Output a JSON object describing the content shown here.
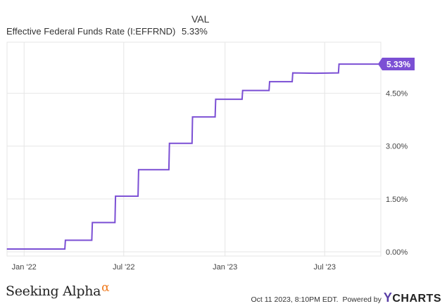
{
  "legend": {
    "header": "VAL",
    "series_name": "Effective Federal Funds Rate (I:EFFRND)",
    "series_value": "5.33%"
  },
  "footer": {
    "brand": "Seeking Alpha",
    "brand_symbol": "α",
    "timestamp": "Oct 11 2023, 8:10PM EDT.",
    "powered_by": "Powered by",
    "provider_prefix": "Y",
    "provider_rest": "CHARTS"
  },
  "colors": {
    "series": "#7b4fd4",
    "grid": "#e6e6e6",
    "badge_text": "#ffffff",
    "brand_alpha": "#f07c21"
  },
  "chart_data": {
    "type": "line",
    "title": "",
    "xlabel": "",
    "ylabel": "",
    "x_ticks": [
      "Jan '22",
      "Jul '22",
      "Jan '23",
      "Jul '23"
    ],
    "y_ticks": [
      "0.00%",
      "1.50%",
      "3.00%",
      "4.50%"
    ],
    "xlim": [
      "2021-12-01",
      "2023-10-11"
    ],
    "ylim": [
      -0.12,
      5.95
    ],
    "grid": true,
    "end_label": "5.33%",
    "series": [
      {
        "name": "Effective Federal Funds Rate (I:EFFRND)",
        "x": [
          "2021-12-01",
          "2022-03-16",
          "2022-03-17",
          "2022-05-04",
          "2022-05-05",
          "2022-06-15",
          "2022-06-16",
          "2022-07-27",
          "2022-07-28",
          "2022-09-21",
          "2022-09-22",
          "2022-11-02",
          "2022-11-03",
          "2022-12-14",
          "2022-12-15",
          "2023-02-01",
          "2023-02-02",
          "2023-03-22",
          "2023-03-23",
          "2023-05-03",
          "2023-05-04",
          "2023-06-14",
          "2023-07-26",
          "2023-07-27",
          "2023-10-11"
        ],
        "y": [
          0.08,
          0.08,
          0.33,
          0.33,
          0.83,
          0.83,
          1.58,
          1.58,
          2.33,
          2.33,
          3.08,
          3.08,
          3.83,
          3.83,
          4.33,
          4.33,
          4.58,
          4.58,
          4.83,
          4.83,
          5.08,
          5.07,
          5.08,
          5.33,
          5.33
        ]
      }
    ]
  }
}
